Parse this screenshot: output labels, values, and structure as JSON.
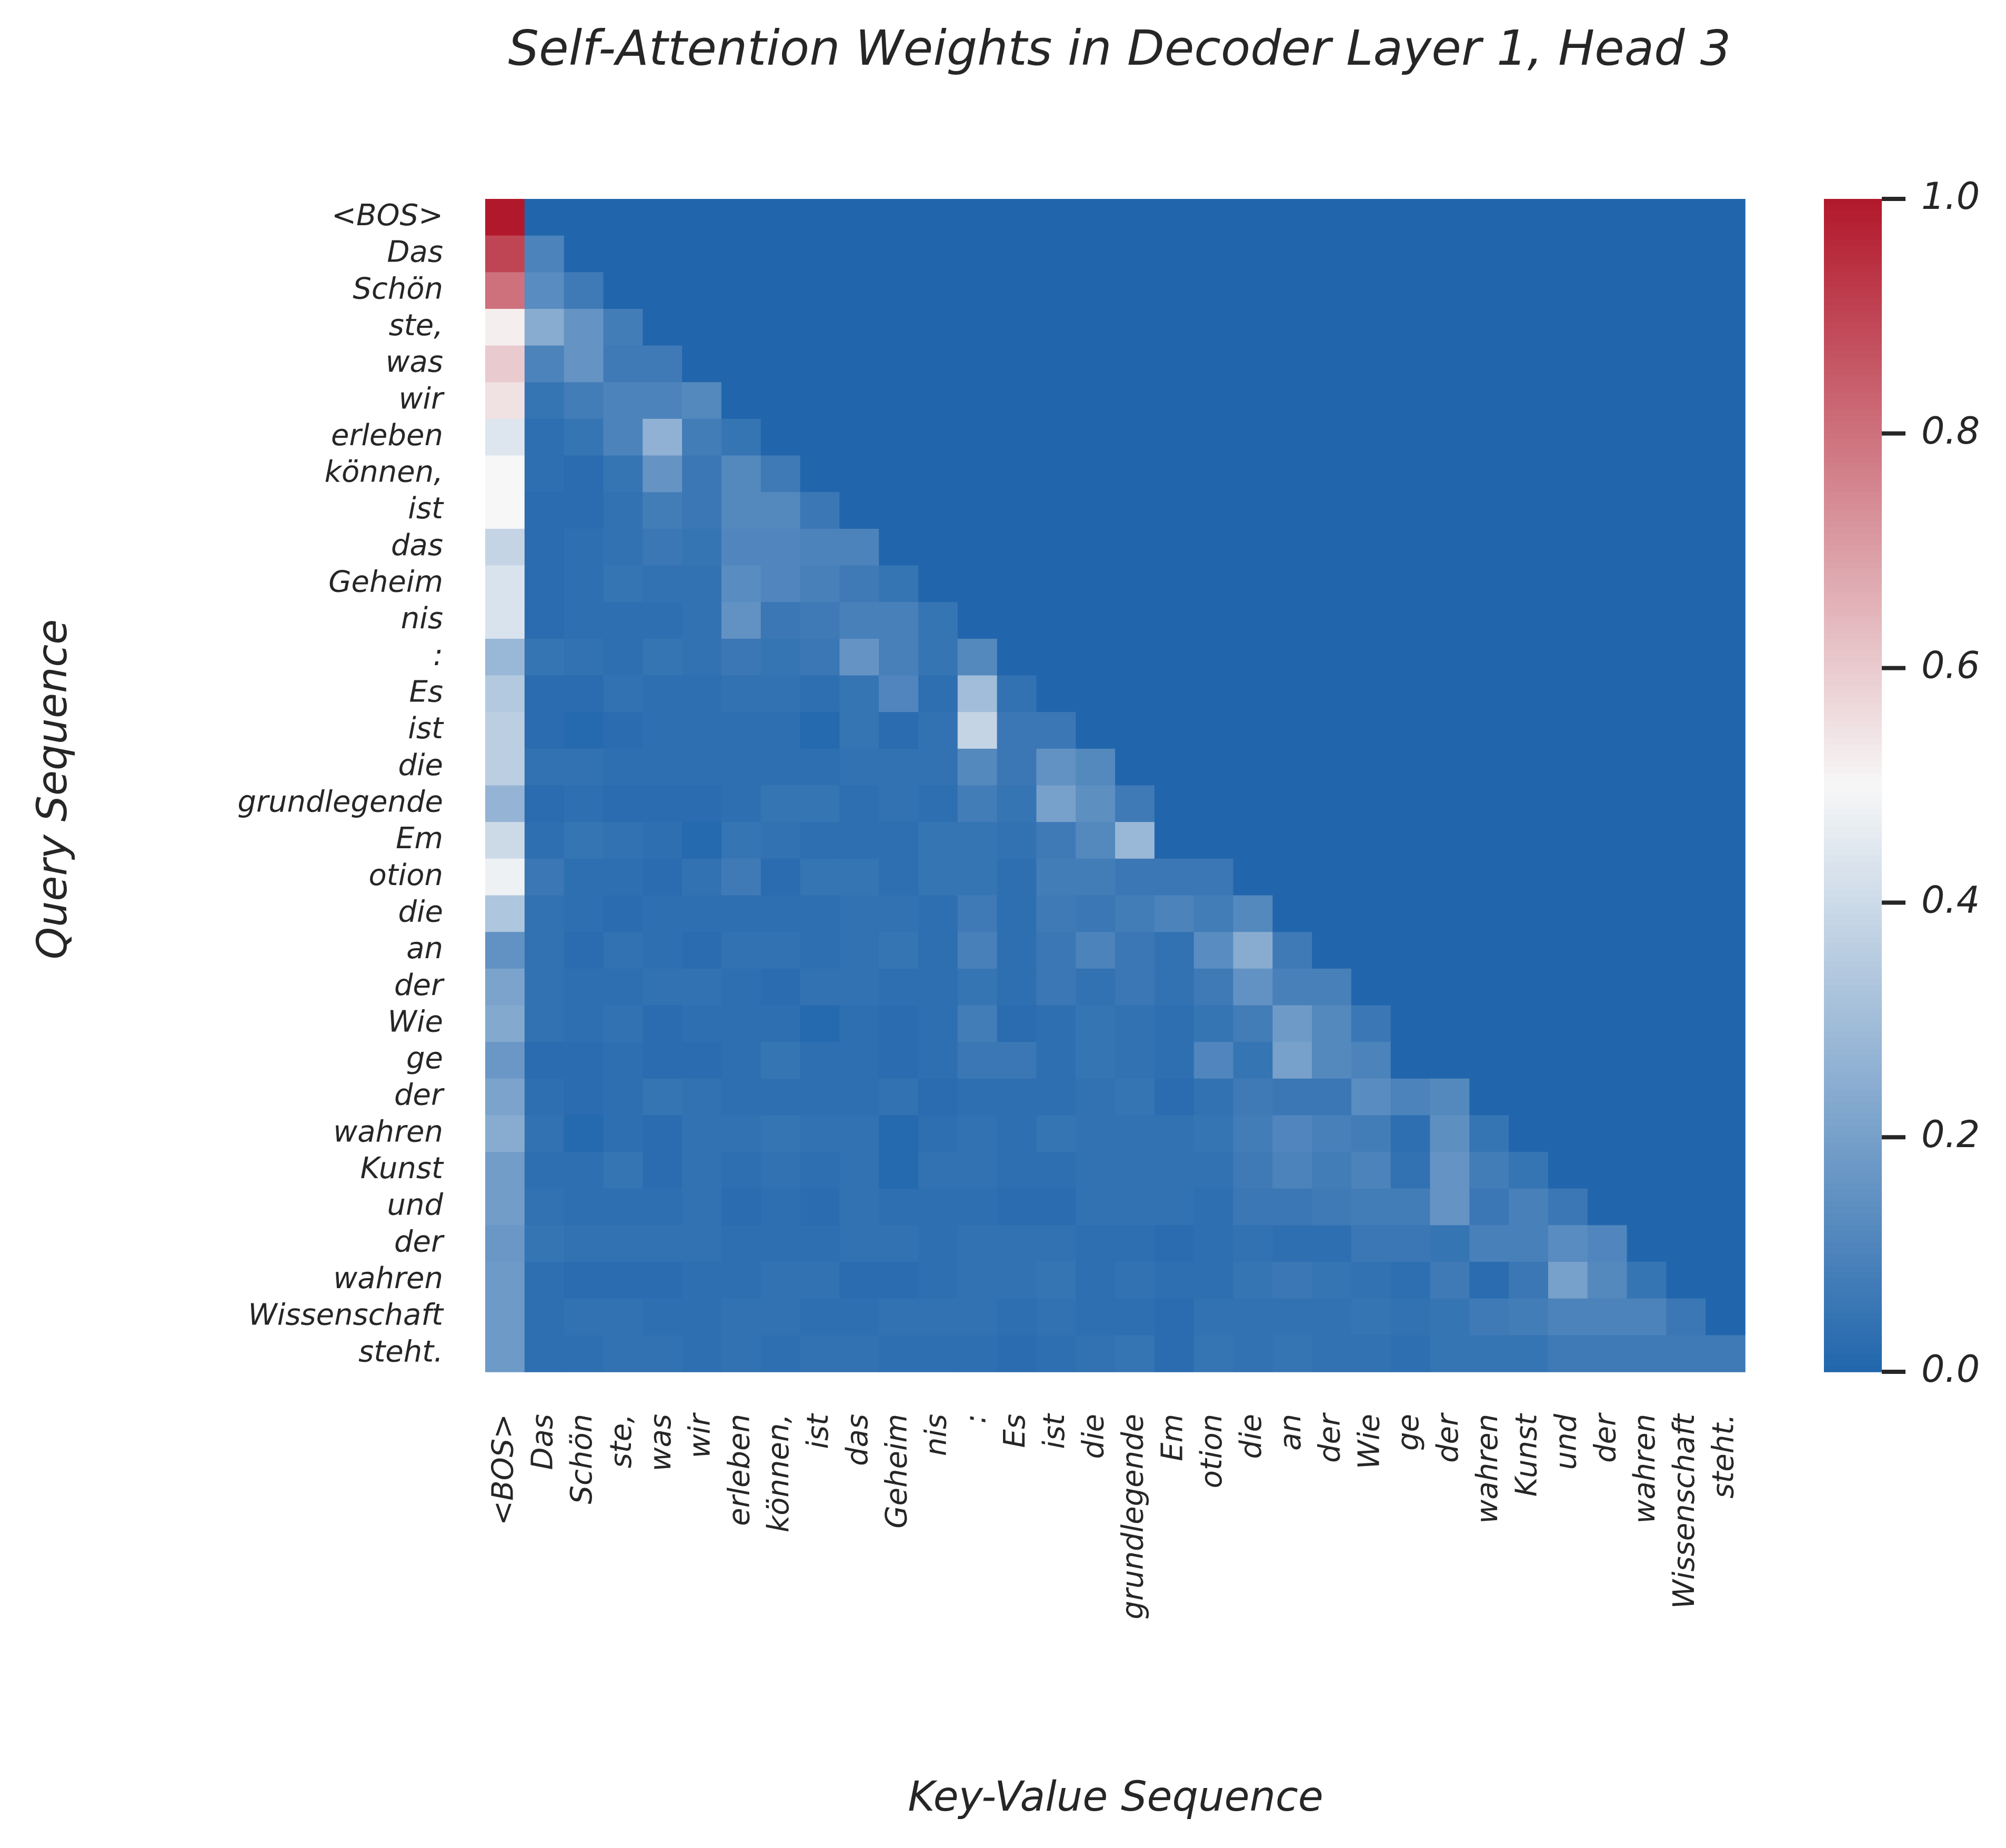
{
  "chart_data": {
    "type": "heatmap",
    "title": "Self-Attention Weights in Decoder Layer 1, Head 3",
    "xlabel": "Key-Value Sequence",
    "ylabel": "Query Sequence",
    "tokens": [
      "<BOS>",
      "Das",
      "Schön",
      "ste,",
      "was",
      "wir",
      "erleben",
      "können,",
      "ist",
      "das",
      "Geheim",
      "nis",
      ":",
      "Es",
      "ist",
      "die",
      "grundlegende",
      "Em",
      "otion",
      "die",
      "an",
      "der",
      "Wie",
      "ge",
      "der",
      "wahren",
      "Kunst",
      "und",
      "der",
      "wahren",
      "Wissenschaft",
      "steht."
    ],
    "colorbar": {
      "min": 0.0,
      "max": 1.0,
      "ticks": [
        0.0,
        0.2,
        0.4,
        0.6,
        0.8,
        1.0
      ],
      "tick_labels": [
        "0.0",
        "0.2",
        "0.4",
        "0.6",
        "0.8",
        "1.0"
      ],
      "colormap": [
        "#2166ac",
        "#f7f7f7",
        "#b2182b"
      ]
    },
    "matrix": [
      [
        1.0,
        0,
        0,
        0,
        0,
        0,
        0,
        0,
        0,
        0,
        0,
        0,
        0,
        0,
        0,
        0,
        0,
        0,
        0,
        0,
        0,
        0,
        0,
        0,
        0,
        0,
        0,
        0,
        0,
        0,
        0,
        0
      ],
      [
        0.9,
        0.1,
        0,
        0,
        0,
        0,
        0,
        0,
        0,
        0,
        0,
        0,
        0,
        0,
        0,
        0,
        0,
        0,
        0,
        0,
        0,
        0,
        0,
        0,
        0,
        0,
        0,
        0,
        0,
        0,
        0,
        0
      ],
      [
        0.8,
        0.13,
        0.07,
        0,
        0,
        0,
        0,
        0,
        0,
        0,
        0,
        0,
        0,
        0,
        0,
        0,
        0,
        0,
        0,
        0,
        0,
        0,
        0,
        0,
        0,
        0,
        0,
        0,
        0,
        0,
        0,
        0
      ],
      [
        0.52,
        0.24,
        0.16,
        0.08,
        0,
        0,
        0,
        0,
        0,
        0,
        0,
        0,
        0,
        0,
        0,
        0,
        0,
        0,
        0,
        0,
        0,
        0,
        0,
        0,
        0,
        0,
        0,
        0,
        0,
        0,
        0,
        0
      ],
      [
        0.6,
        0.1,
        0.16,
        0.07,
        0.07,
        0,
        0,
        0,
        0,
        0,
        0,
        0,
        0,
        0,
        0,
        0,
        0,
        0,
        0,
        0,
        0,
        0,
        0,
        0,
        0,
        0,
        0,
        0,
        0,
        0,
        0,
        0
      ],
      [
        0.55,
        0.05,
        0.08,
        0.1,
        0.1,
        0.12,
        0,
        0,
        0,
        0,
        0,
        0,
        0,
        0,
        0,
        0,
        0,
        0,
        0,
        0,
        0,
        0,
        0,
        0,
        0,
        0,
        0,
        0,
        0,
        0,
        0,
        0
      ],
      [
        0.44,
        0.03,
        0.05,
        0.1,
        0.26,
        0.08,
        0.05,
        0,
        0,
        0,
        0,
        0,
        0,
        0,
        0,
        0,
        0,
        0,
        0,
        0,
        0,
        0,
        0,
        0,
        0,
        0,
        0,
        0,
        0,
        0,
        0,
        0
      ],
      [
        0.5,
        0.03,
        0.02,
        0.05,
        0.16,
        0.06,
        0.12,
        0.07,
        0,
        0,
        0,
        0,
        0,
        0,
        0,
        0,
        0,
        0,
        0,
        0,
        0,
        0,
        0,
        0,
        0,
        0,
        0,
        0,
        0,
        0,
        0,
        0
      ],
      [
        0.5,
        0.02,
        0.02,
        0.04,
        0.08,
        0.06,
        0.12,
        0.12,
        0.06,
        0,
        0,
        0,
        0,
        0,
        0,
        0,
        0,
        0,
        0,
        0,
        0,
        0,
        0,
        0,
        0,
        0,
        0,
        0,
        0,
        0,
        0,
        0
      ],
      [
        0.38,
        0.02,
        0.03,
        0.04,
        0.06,
        0.05,
        0.11,
        0.11,
        0.1,
        0.1,
        0,
        0,
        0,
        0,
        0,
        0,
        0,
        0,
        0,
        0,
        0,
        0,
        0,
        0,
        0,
        0,
        0,
        0,
        0,
        0,
        0,
        0
      ],
      [
        0.43,
        0.02,
        0.03,
        0.05,
        0.04,
        0.04,
        0.13,
        0.11,
        0.09,
        0.07,
        0.05,
        0,
        0,
        0,
        0,
        0,
        0,
        0,
        0,
        0,
        0,
        0,
        0,
        0,
        0,
        0,
        0,
        0,
        0,
        0,
        0,
        0
      ],
      [
        0.43,
        0.02,
        0.03,
        0.03,
        0.03,
        0.04,
        0.15,
        0.06,
        0.07,
        0.09,
        0.09,
        0.05,
        0,
        0,
        0,
        0,
        0,
        0,
        0,
        0,
        0,
        0,
        0,
        0,
        0,
        0,
        0,
        0,
        0,
        0,
        0,
        0
      ],
      [
        0.28,
        0.05,
        0.04,
        0.03,
        0.05,
        0.04,
        0.06,
        0.05,
        0.06,
        0.16,
        0.09,
        0.05,
        0.12,
        0,
        0,
        0,
        0,
        0,
        0,
        0,
        0,
        0,
        0,
        0,
        0,
        0,
        0,
        0,
        0,
        0,
        0,
        0
      ],
      [
        0.34,
        0.02,
        0.02,
        0.04,
        0.03,
        0.03,
        0.04,
        0.04,
        0.03,
        0.05,
        0.11,
        0.03,
        0.3,
        0.04,
        0,
        0,
        0,
        0,
        0,
        0,
        0,
        0,
        0,
        0,
        0,
        0,
        0,
        0,
        0,
        0,
        0,
        0
      ],
      [
        0.36,
        0.02,
        0.01,
        0.02,
        0.03,
        0.03,
        0.03,
        0.03,
        0.01,
        0.05,
        0.02,
        0.04,
        0.38,
        0.06,
        0.06,
        0,
        0,
        0,
        0,
        0,
        0,
        0,
        0,
        0,
        0,
        0,
        0,
        0,
        0,
        0,
        0,
        0
      ],
      [
        0.36,
        0.04,
        0.04,
        0.03,
        0.03,
        0.03,
        0.03,
        0.03,
        0.03,
        0.04,
        0.04,
        0.04,
        0.12,
        0.06,
        0.15,
        0.12,
        0,
        0,
        0,
        0,
        0,
        0,
        0,
        0,
        0,
        0,
        0,
        0,
        0,
        0,
        0,
        0
      ],
      [
        0.27,
        0.02,
        0.03,
        0.02,
        0.02,
        0.02,
        0.03,
        0.05,
        0.05,
        0.03,
        0.04,
        0.03,
        0.08,
        0.05,
        0.2,
        0.14,
        0.07,
        0,
        0,
        0,
        0,
        0,
        0,
        0,
        0,
        0,
        0,
        0,
        0,
        0,
        0,
        0
      ],
      [
        0.4,
        0.03,
        0.05,
        0.04,
        0.03,
        0.01,
        0.05,
        0.04,
        0.03,
        0.03,
        0.03,
        0.05,
        0.05,
        0.04,
        0.07,
        0.12,
        0.28,
        0,
        0,
        0,
        0,
        0,
        0,
        0,
        0,
        0,
        0,
        0,
        0,
        0,
        0,
        0
      ],
      [
        0.48,
        0.06,
        0.03,
        0.03,
        0.02,
        0.04,
        0.07,
        0.02,
        0.05,
        0.05,
        0.03,
        0.05,
        0.05,
        0.03,
        0.08,
        0.08,
        0.06,
        0.06,
        0.06,
        0,
        0,
        0,
        0,
        0,
        0,
        0,
        0,
        0,
        0,
        0,
        0,
        0
      ],
      [
        0.33,
        0.04,
        0.03,
        0.02,
        0.03,
        0.03,
        0.03,
        0.03,
        0.03,
        0.04,
        0.04,
        0.03,
        0.07,
        0.03,
        0.07,
        0.06,
        0.08,
        0.1,
        0.08,
        0.12,
        0,
        0,
        0,
        0,
        0,
        0,
        0,
        0,
        0,
        0,
        0,
        0
      ],
      [
        0.15,
        0.04,
        0.02,
        0.04,
        0.03,
        0.02,
        0.04,
        0.04,
        0.03,
        0.04,
        0.05,
        0.03,
        0.09,
        0.03,
        0.06,
        0.1,
        0.06,
        0.04,
        0.13,
        0.24,
        0.07,
        0,
        0,
        0,
        0,
        0,
        0,
        0,
        0,
        0,
        0,
        0
      ],
      [
        0.21,
        0.04,
        0.03,
        0.03,
        0.04,
        0.04,
        0.03,
        0.02,
        0.04,
        0.04,
        0.03,
        0.03,
        0.05,
        0.03,
        0.06,
        0.04,
        0.06,
        0.04,
        0.07,
        0.15,
        0.09,
        0.09,
        0,
        0,
        0,
        0,
        0,
        0,
        0,
        0,
        0,
        0
      ],
      [
        0.23,
        0.04,
        0.03,
        0.04,
        0.02,
        0.03,
        0.03,
        0.03,
        0.01,
        0.03,
        0.02,
        0.03,
        0.08,
        0.02,
        0.03,
        0.05,
        0.04,
        0.03,
        0.05,
        0.08,
        0.18,
        0.12,
        0.06,
        0,
        0,
        0,
        0,
        0,
        0,
        0,
        0,
        0
      ],
      [
        0.17,
        0.02,
        0.02,
        0.03,
        0.02,
        0.02,
        0.03,
        0.05,
        0.03,
        0.03,
        0.02,
        0.03,
        0.06,
        0.06,
        0.03,
        0.05,
        0.04,
        0.03,
        0.11,
        0.05,
        0.2,
        0.12,
        0.1,
        0,
        0,
        0,
        0,
        0,
        0,
        0,
        0,
        0
      ],
      [
        0.21,
        0.03,
        0.02,
        0.03,
        0.05,
        0.04,
        0.03,
        0.03,
        0.03,
        0.03,
        0.04,
        0.02,
        0.03,
        0.03,
        0.03,
        0.04,
        0.05,
        0.02,
        0.04,
        0.07,
        0.06,
        0.06,
        0.13,
        0.1,
        0.12,
        0,
        0,
        0,
        0,
        0,
        0,
        0
      ],
      [
        0.24,
        0.04,
        0.01,
        0.03,
        0.02,
        0.04,
        0.04,
        0.05,
        0.04,
        0.04,
        0.01,
        0.03,
        0.04,
        0.03,
        0.05,
        0.04,
        0.04,
        0.04,
        0.05,
        0.08,
        0.11,
        0.09,
        0.08,
        0.03,
        0.14,
        0.05,
        0,
        0,
        0,
        0,
        0,
        0
      ],
      [
        0.19,
        0.03,
        0.03,
        0.05,
        0.02,
        0.04,
        0.03,
        0.04,
        0.03,
        0.04,
        0.01,
        0.04,
        0.04,
        0.03,
        0.03,
        0.04,
        0.04,
        0.04,
        0.04,
        0.07,
        0.1,
        0.08,
        0.1,
        0.04,
        0.16,
        0.08,
        0.05,
        0,
        0,
        0,
        0,
        0
      ],
      [
        0.19,
        0.04,
        0.03,
        0.03,
        0.03,
        0.04,
        0.02,
        0.03,
        0.02,
        0.04,
        0.03,
        0.03,
        0.03,
        0.02,
        0.02,
        0.04,
        0.04,
        0.04,
        0.03,
        0.06,
        0.06,
        0.07,
        0.08,
        0.08,
        0.16,
        0.06,
        0.09,
        0.06,
        0,
        0,
        0,
        0
      ],
      [
        0.17,
        0.05,
        0.04,
        0.04,
        0.04,
        0.04,
        0.03,
        0.03,
        0.03,
        0.04,
        0.04,
        0.03,
        0.04,
        0.04,
        0.04,
        0.03,
        0.03,
        0.02,
        0.03,
        0.04,
        0.03,
        0.03,
        0.06,
        0.06,
        0.05,
        0.09,
        0.09,
        0.13,
        0.11,
        0,
        0,
        0
      ],
      [
        0.18,
        0.03,
        0.02,
        0.02,
        0.02,
        0.03,
        0.03,
        0.04,
        0.04,
        0.02,
        0.02,
        0.03,
        0.04,
        0.04,
        0.05,
        0.03,
        0.04,
        0.03,
        0.03,
        0.05,
        0.06,
        0.05,
        0.04,
        0.03,
        0.07,
        0.02,
        0.06,
        0.2,
        0.12,
        0.05,
        0,
        0
      ],
      [
        0.18,
        0.03,
        0.04,
        0.04,
        0.03,
        0.03,
        0.04,
        0.04,
        0.03,
        0.03,
        0.04,
        0.04,
        0.04,
        0.03,
        0.04,
        0.03,
        0.03,
        0.02,
        0.04,
        0.04,
        0.04,
        0.04,
        0.05,
        0.04,
        0.05,
        0.07,
        0.08,
        0.1,
        0.1,
        0.1,
        0.06,
        0
      ],
      [
        0.18,
        0.03,
        0.03,
        0.04,
        0.04,
        0.03,
        0.04,
        0.03,
        0.04,
        0.04,
        0.03,
        0.03,
        0.03,
        0.02,
        0.03,
        0.04,
        0.05,
        0.02,
        0.05,
        0.04,
        0.05,
        0.04,
        0.04,
        0.03,
        0.05,
        0.05,
        0.05,
        0.07,
        0.07,
        0.07,
        0.07,
        0.07
      ]
    ]
  }
}
